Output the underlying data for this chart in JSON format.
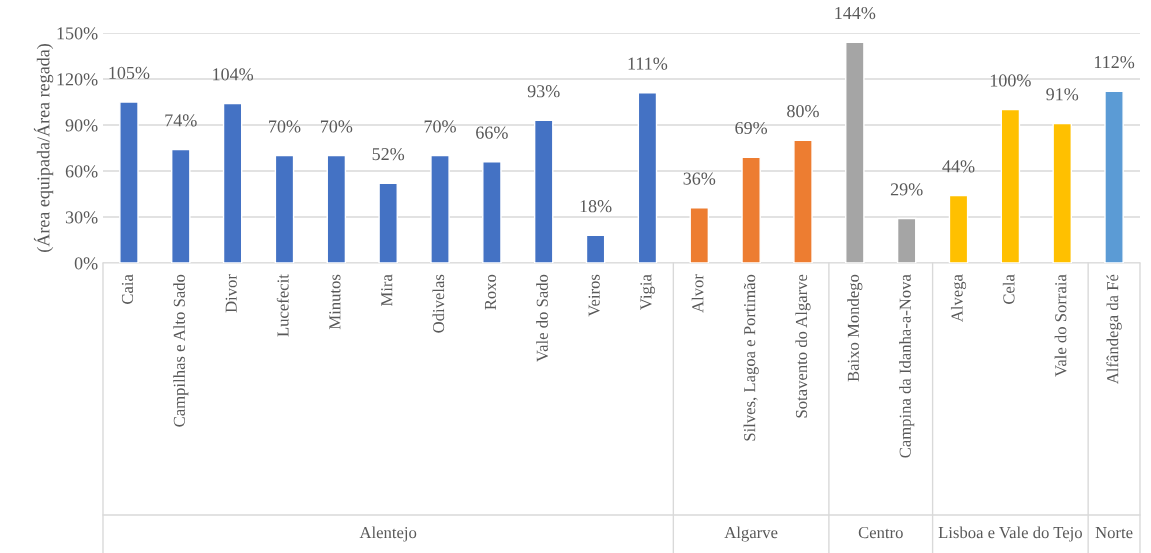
{
  "chart_data": {
    "type": "bar",
    "ylabel": "(Área equipada/Área regada)",
    "categories": [
      "Caia",
      "Campilhas e Alto Sado",
      "Divor",
      "Lucefecit",
      "Minutos",
      "Mira",
      "Odivelas",
      "Roxo",
      "Vale do Sado",
      "Veiros",
      "Vigia",
      "Alvor",
      "Silves, Lagoa e Portimão",
      "Sotavento do Algarve",
      "Baixo Mondego",
      "Campina da Idanha-a-Nova",
      "Alvega",
      "Cela",
      "Vale do Sorraia",
      "Alfândega da Fé"
    ],
    "values": [
      105,
      74,
      104,
      70,
      70,
      52,
      70,
      66,
      93,
      18,
      111,
      36,
      69,
      80,
      144,
      29,
      44,
      100,
      91,
      112
    ],
    "value_labels": [
      "105%",
      "74%",
      "104%",
      "70%",
      "70%",
      "52%",
      "70%",
      "66%",
      "93%",
      "18%",
      "111%",
      "36%",
      "69%",
      "80%",
      "144%",
      "29%",
      "44%",
      "100%",
      "91%",
      "112%"
    ],
    "colors": [
      "#4472c4",
      "#4472c4",
      "#4472c4",
      "#4472c4",
      "#4472c4",
      "#4472c4",
      "#4472c4",
      "#4472c4",
      "#4472c4",
      "#4472c4",
      "#4472c4",
      "#ed7d31",
      "#ed7d31",
      "#ed7d31",
      "#a5a5a5",
      "#a5a5a5",
      "#ffc000",
      "#ffc000",
      "#ffc000",
      "#5b9bd5"
    ],
    "annotations": [
      "Alentejo",
      "Algarve",
      "Centro",
      "Lisboa e Vale do Tejo",
      "Norte"
    ],
    "ylim": [
      0,
      150
    ],
    "yticks": [
      {
        "value": 0,
        "label": "0%"
      },
      {
        "value": 30,
        "label": "30%"
      },
      {
        "value": 60,
        "label": "60%"
      },
      {
        "value": 90,
        "label": "90%"
      },
      {
        "value": 120,
        "label": "120%"
      },
      {
        "value": 150,
        "label": "150%"
      }
    ],
    "grid": "y",
    "legend": false
  }
}
